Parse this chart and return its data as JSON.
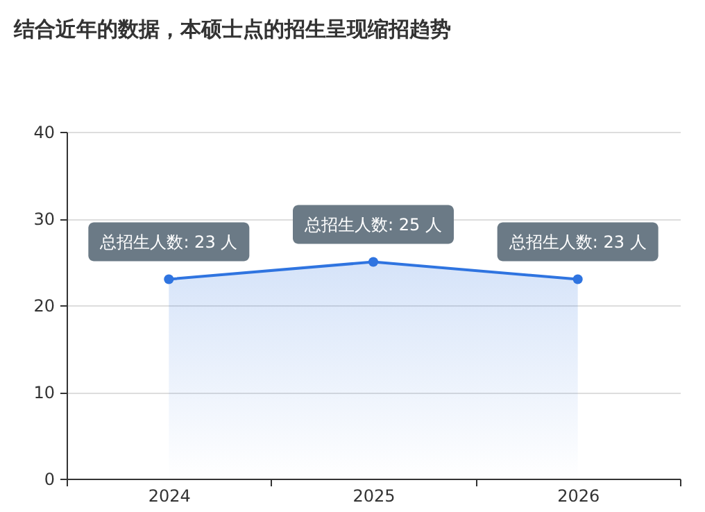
{
  "chart_data": {
    "type": "area",
    "title": "结合近年的数据，本硕士点的招生呈现缩招趋势",
    "categories": [
      "2024",
      "2025",
      "2026"
    ],
    "series": [
      {
        "color": "#2f74e0",
        "values": [
          23,
          25,
          23
        ],
        "value_labels": [
          "总招生人数: 23 人",
          "总招生人数: 25 人",
          "总招生人数: 23 人"
        ]
      }
    ],
    "ylim": [
      0,
      40
    ],
    "yticks": [
      0,
      10,
      20,
      30,
      40
    ],
    "grid": "y",
    "marker": "circle",
    "line_style": "solid"
  }
}
